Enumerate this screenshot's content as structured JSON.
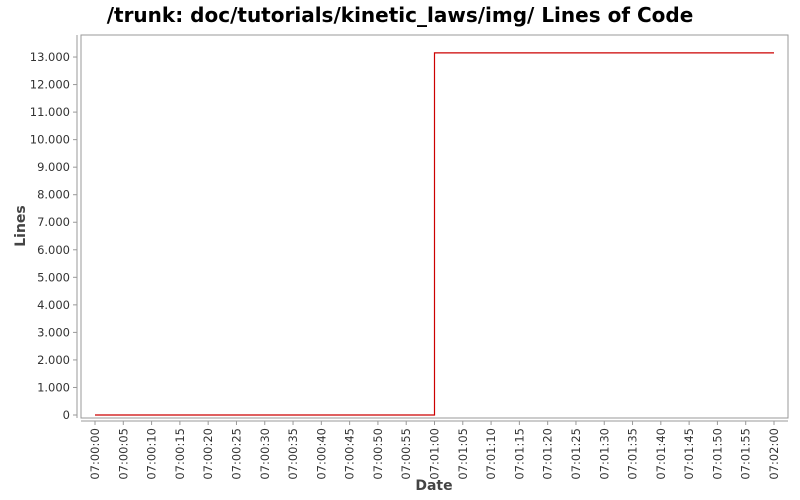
{
  "chart_data": {
    "type": "line",
    "title": "/trunk: doc/tutorials/kinetic_laws/img/ Lines of Code",
    "xlabel": "Date",
    "ylabel": "Lines",
    "x_ticks": [
      "07:00:00",
      "07:00:05",
      "07:00:10",
      "07:00:15",
      "07:00:20",
      "07:00:25",
      "07:00:30",
      "07:00:35",
      "07:00:40",
      "07:00:45",
      "07:00:50",
      "07:00:55",
      "07:01:00",
      "07:01:05",
      "07:01:10",
      "07:01:15",
      "07:01:20",
      "07:01:25",
      "07:01:30",
      "07:01:35",
      "07:01:40",
      "07:01:45",
      "07:01:50",
      "07:01:55",
      "07:02:00"
    ],
    "y_ticks": [
      "0",
      "1.000",
      "2.000",
      "3.000",
      "4.000",
      "5.000",
      "6.000",
      "7.000",
      "8.000",
      "9.000",
      "10.000",
      "11.000",
      "12.000",
      "13.000"
    ],
    "ylim": [
      0,
      13800
    ],
    "xlim": [
      "07:00:00",
      "07:02:00"
    ],
    "grid": false,
    "series": [
      {
        "color": "#cc0000",
        "step": true,
        "points": [
          {
            "x": "07:00:00",
            "y": 0
          },
          {
            "x": "07:01:00",
            "y": 0
          },
          {
            "x": "07:01:00",
            "y": 13150
          },
          {
            "x": "07:02:00",
            "y": 13150
          }
        ]
      }
    ]
  }
}
